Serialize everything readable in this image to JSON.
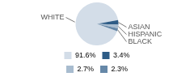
{
  "chart_data": {
    "type": "pie",
    "categories": [
      "WHITE",
      "ASIAN",
      "HISPANIC",
      "BLACK"
    ],
    "values": [
      91.6,
      3.4,
      2.7,
      2.3
    ],
    "value_labels": [
      "91.6%",
      "3.4%",
      "2.7%",
      "2.3%"
    ],
    "colors": [
      "#d3dde8",
      "#2e5c86",
      "#a8bccf",
      "#6688a8"
    ],
    "legend": "bottom"
  }
}
